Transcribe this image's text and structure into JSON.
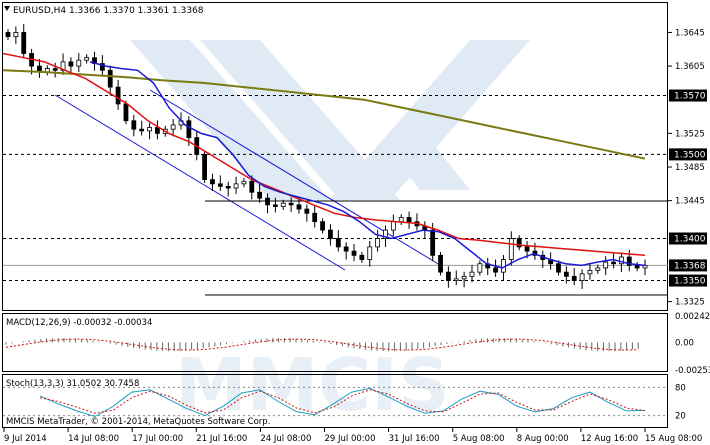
{
  "symbol_header": "EURUSD,H4  1.3366 1.3370 1.3361 1.3368",
  "macd_header": "MACD(12,26,9) -0.00032 -0.00034",
  "stoch_header": "Stoch(13,3,3) 31.0502 30.7458",
  "footer_left": "MMCIS MetaTrader, © 2001-2014, MetaQuotes Software Corp.",
  "watermark": "MMCIS",
  "colors": {
    "candle": "#000000",
    "ma_fast": "#1a1ad6",
    "ma_mid": "#e01010",
    "ma_slow": "#7a7a12",
    "macd_signal": "#d01010",
    "stoch_main": "#1aa0c0",
    "stoch_signal": "#d01010",
    "level_box": "#000000",
    "level_text": "#ffffff",
    "watermark": "#c7d9ec"
  },
  "x_labels": [
    "9 Jul 2014",
    "14 Jul 08:00",
    "17 Jul 00:00",
    "21 Jul 16:00",
    "24 Jul 08:00",
    "29 Jul 00:00",
    "31 Jul 16:00",
    "5 Aug 08:00",
    "8 Aug 00:00",
    "12 Aug 16:00",
    "15 Aug 08:00"
  ],
  "chart_data": [
    {
      "type": "candlestick",
      "symbol": "EURUSD",
      "timeframe": "H4",
      "ohlc_current": {
        "open": 1.3366,
        "high": 1.337,
        "low": 1.3361,
        "close": 1.3368
      },
      "ylim": [
        1.3315,
        1.368
      ],
      "y_ticks": [
        "1.3645",
        "1.3605",
        "1.3525",
        "1.3485",
        "1.3445",
        "1.3325"
      ],
      "level_labels": [
        "1.3570",
        "1.3500",
        "1.3400",
        "1.3368",
        "1.3350"
      ],
      "levels_dashed": [
        1.357,
        1.35,
        1.34,
        1.335
      ],
      "current_price": 1.3368,
      "x_labels": [
        "9 Jul 2014",
        "14 Jul 08:00",
        "17 Jul 00:00",
        "21 Jul 16:00",
        "24 Jul 08:00",
        "29 Jul 00:00",
        "31 Jul 16:00",
        "5 Aug 08:00",
        "8 Aug 00:00",
        "12 Aug 16:00",
        "15 Aug 08:00"
      ],
      "close_series": [
        1.364,
        1.3645,
        1.362,
        1.3605,
        1.3598,
        1.3602,
        1.36,
        1.361,
        1.3605,
        1.3612,
        1.3615,
        1.3608,
        1.36,
        1.358,
        1.356,
        1.354,
        1.353,
        1.3528,
        1.3532,
        1.3525,
        1.353,
        1.3535,
        1.354,
        1.352,
        1.35,
        1.347,
        1.3465,
        1.3462,
        1.346,
        1.3465,
        1.3468,
        1.3455,
        1.3448,
        1.344,
        1.3438,
        1.3442,
        1.344,
        1.3435,
        1.343,
        1.342,
        1.341,
        1.34,
        1.339,
        1.3385,
        1.338,
        1.3375,
        1.339,
        1.34,
        1.341,
        1.342,
        1.3425,
        1.342,
        1.3415,
        1.341,
        1.338,
        1.336,
        1.335,
        1.3352,
        1.3355,
        1.336,
        1.337,
        1.3365,
        1.336,
        1.3375,
        1.34,
        1.339,
        1.3385,
        1.338,
        1.3375,
        1.337,
        1.336,
        1.3355,
        1.335,
        1.3358,
        1.3362,
        1.3365,
        1.3372,
        1.337,
        1.3378,
        1.3368,
        1.3365,
        1.3368
      ],
      "ma_fast": [
        1.361,
        1.3605,
        1.3602,
        1.36,
        1.3585,
        1.3555,
        1.3535,
        1.3525,
        1.352,
        1.35,
        1.3475,
        1.3462,
        1.3455,
        1.345,
        1.3445,
        1.344,
        1.3432,
        1.342,
        1.3405,
        1.34,
        1.3405,
        1.341,
        1.3408,
        1.34,
        1.3385,
        1.337,
        1.3365,
        1.3375,
        1.3382,
        1.3375,
        1.337,
        1.3368,
        1.3372,
        1.3375,
        1.337,
        1.3368
      ],
      "ma_mid": [
        1.362,
        1.3615,
        1.361,
        1.36,
        1.359,
        1.3575,
        1.356,
        1.354,
        1.3525,
        1.3515,
        1.35,
        1.3485,
        1.347,
        1.346,
        1.345,
        1.344,
        1.343,
        1.3425,
        1.3422,
        1.342,
        1.3418,
        1.341,
        1.34,
        1.3398,
        1.3395,
        1.3392,
        1.339,
        1.3388,
        1.3386,
        1.3384,
        1.3382,
        1.338
      ],
      "ma_slow": [
        1.36,
        1.3598,
        1.3595,
        1.3592,
        1.3588,
        1.3585,
        1.358,
        1.3575,
        1.357,
        1.3565,
        1.3555,
        1.3545,
        1.3535,
        1.3525,
        1.3515,
        1.3505,
        1.3495
      ],
      "macd": {
        "header": "MACD(12,26,9) -0.00032 -0.00034",
        "y_ticks": [
          "0.00242",
          "0.00",
          "-0.00253"
        ],
        "ylim": [
          -0.00253,
          0.00242
        ]
      },
      "stoch": {
        "header": "Stoch(13,3,3) 31.0502 30.7458",
        "y_ticks": [
          "80",
          "20"
        ],
        "ylim": [
          0,
          100
        ],
        "main": [
          62,
          45,
          30,
          18,
          40,
          70,
          75,
          55,
          35,
          20,
          40,
          68,
          75,
          50,
          28,
          22,
          45,
          70,
          78,
          60,
          40,
          25,
          30,
          55,
          72,
          65,
          40,
          28,
          35,
          58,
          70,
          48,
          30,
          31
        ],
        "signal": [
          58,
          50,
          38,
          25,
          32,
          58,
          72,
          62,
          42,
          26,
          32,
          58,
          72,
          58,
          36,
          26,
          38,
          62,
          75,
          66,
          46,
          30,
          28,
          46,
          66,
          68,
          48,
          32,
          32,
          50,
          66,
          54,
          36,
          30.7
        ]
      }
    }
  ]
}
